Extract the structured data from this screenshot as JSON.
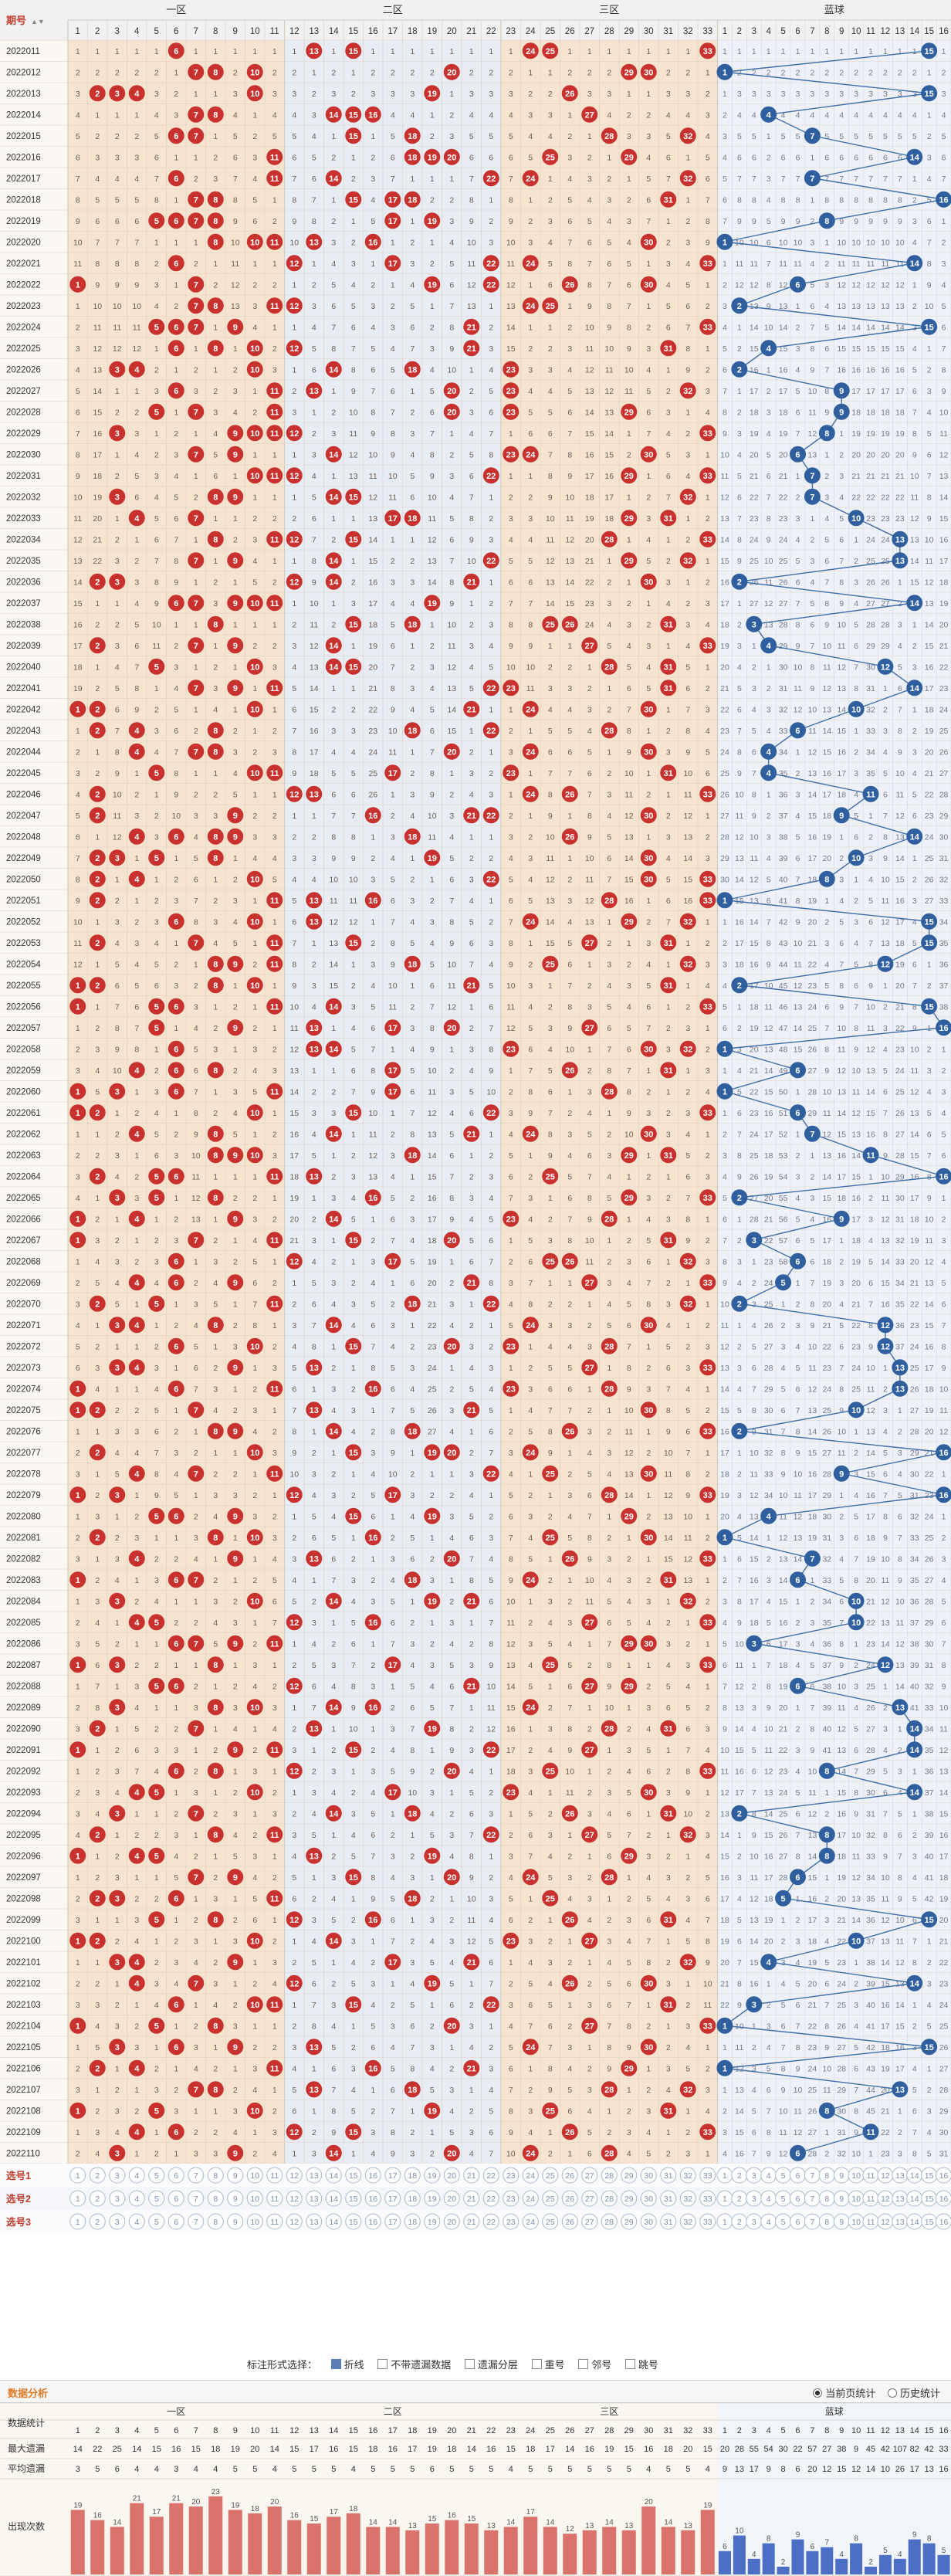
{
  "header": {
    "issue_label": "期号",
    "sort_glyph": "▲▼",
    "zones": [
      "一区",
      "二区",
      "三区"
    ],
    "blue_label": "蓝球",
    "red_numbers": [
      "1",
      "2",
      "3",
      "4",
      "5",
      "6",
      "7",
      "8",
      "9",
      "10",
      "11",
      "12",
      "13",
      "14",
      "15",
      "16",
      "17",
      "18",
      "19",
      "20",
      "21",
      "22",
      "23",
      "24",
      "25",
      "26",
      "27",
      "28",
      "29",
      "30",
      "31",
      "32",
      "33"
    ],
    "blue_numbers": [
      "1",
      "2",
      "3",
      "4",
      "5",
      "6",
      "7",
      "8",
      "9",
      "10",
      "11",
      "12",
      "13",
      "14",
      "15",
      "16"
    ]
  },
  "issues": [
    "2022011",
    "2022012",
    "2022013",
    "2022014",
    "2022015",
    "2022016",
    "2022017",
    "2022018",
    "2022019",
    "2022020",
    "2022021",
    "2022022",
    "2022023",
    "2022024",
    "2022025",
    "2022026",
    "2022027",
    "2022028",
    "2022029",
    "2022030",
    "2022031",
    "2022032",
    "2022033",
    "2022034",
    "2022035",
    "2022036",
    "2022037",
    "2022038",
    "2022039",
    "2022040",
    "2022041",
    "2022042",
    "2022043",
    "2022044",
    "2022045",
    "2022046",
    "2022047",
    "2022048",
    "2022049",
    "2022050",
    "2022051",
    "2022052",
    "2022053",
    "2022054",
    "2022055",
    "2022056",
    "2022057",
    "2022058",
    "2022059",
    "2022060",
    "2022061",
    "2022062",
    "2022063",
    "2022064",
    "2022065",
    "2022066",
    "2022067",
    "2022068",
    "2022069",
    "2022070",
    "2022071",
    "2022072",
    "2022073",
    "2022074",
    "2022075",
    "2022076",
    "2022077",
    "2022078",
    "2022079",
    "2022080",
    "2022081",
    "2022082",
    "2022083",
    "2022084",
    "2022085",
    "2022086",
    "2022087",
    "2022088",
    "2022089",
    "2022090",
    "2022091",
    "2022092",
    "2022093",
    "2022094",
    "2022095",
    "2022096",
    "2022097",
    "2022098",
    "2022099",
    "2022100",
    "2022101",
    "2022102",
    "2022103",
    "2022104",
    "2022105",
    "2022106",
    "2022107",
    "2022108",
    "2022109",
    "2022110"
  ],
  "chart_data": {
    "type": "table",
    "title": "",
    "red_draws": [
      [
        6,
        13,
        15,
        24,
        25,
        33
      ],
      [
        7,
        8,
        10,
        20,
        29,
        30
      ],
      [
        2,
        3,
        4,
        10,
        19,
        26
      ],
      [
        7,
        8,
        14,
        15,
        16,
        27
      ],
      [
        6,
        7,
        15,
        18,
        28,
        32
      ],
      [
        11,
        18,
        19,
        20,
        25,
        29
      ],
      [
        6,
        11,
        14,
        22,
        24,
        32
      ],
      [
        7,
        8,
        15,
        17,
        18,
        31
      ],
      [
        5,
        6,
        7,
        8,
        17,
        19
      ],
      [
        8,
        10,
        11,
        13,
        16,
        30
      ],
      [
        6,
        12,
        17,
        22,
        24,
        33
      ],
      [
        1,
        7,
        19,
        22,
        26,
        30
      ],
      [
        7,
        8,
        11,
        12,
        24,
        25
      ],
      [
        5,
        6,
        7,
        9,
        21,
        33
      ],
      [
        6,
        8,
        10,
        12,
        21,
        31
      ],
      [
        3,
        4,
        10,
        14,
        18,
        23
      ],
      [
        6,
        11,
        13,
        20,
        23,
        32
      ],
      [
        5,
        7,
        11,
        20,
        23,
        29
      ],
      [
        3,
        9,
        10,
        11,
        12,
        33
      ],
      [
        7,
        9,
        14,
        23,
        24,
        30
      ],
      [
        10,
        11,
        12,
        22,
        29,
        33
      ],
      [
        3,
        8,
        9,
        14,
        15,
        32
      ],
      [
        4,
        7,
        17,
        18,
        29,
        31
      ],
      [
        8,
        11,
        12,
        15,
        28,
        33
      ],
      [
        7,
        9,
        14,
        22,
        29,
        32
      ],
      [
        2,
        3,
        12,
        14,
        21,
        30
      ],
      [
        6,
        7,
        9,
        10,
        11,
        19
      ],
      [
        8,
        15,
        18,
        25,
        26,
        31
      ],
      [
        2,
        7,
        9,
        14,
        27,
        33
      ],
      [
        5,
        10,
        14,
        15,
        28,
        31
      ],
      [
        7,
        9,
        11,
        22,
        23,
        31
      ],
      [
        1,
        2,
        10,
        21,
        24,
        30
      ],
      [
        2,
        4,
        8,
        18,
        22,
        28
      ],
      [
        4,
        7,
        8,
        20,
        24,
        30
      ],
      [
        5,
        10,
        11,
        17,
        23,
        31
      ],
      [
        2,
        12,
        13,
        24,
        26,
        33
      ],
      [
        2,
        9,
        16,
        21,
        22,
        30
      ],
      [
        4,
        6,
        8,
        9,
        18,
        26
      ],
      [
        2,
        3,
        5,
        8,
        19,
        30
      ],
      [
        2,
        4,
        10,
        22,
        30,
        33
      ],
      [
        2,
        11,
        13,
        16,
        28,
        33
      ],
      [
        6,
        10,
        13,
        24,
        29,
        32
      ],
      [
        2,
        7,
        11,
        15,
        27,
        31
      ],
      [
        8,
        9,
        11,
        18,
        25,
        32
      ],
      [
        1,
        2,
        8,
        10,
        21,
        31
      ],
      [
        1,
        5,
        6,
        11,
        14,
        33
      ],
      [
        5,
        9,
        13,
        17,
        20,
        27
      ],
      [
        6,
        13,
        14,
        23,
        30,
        32
      ],
      [
        4,
        6,
        8,
        17,
        26,
        31
      ],
      [
        1,
        3,
        6,
        11,
        17,
        28
      ],
      [
        1,
        2,
        10,
        15,
        22,
        33
      ],
      [
        4,
        8,
        14,
        21,
        24,
        30
      ],
      [
        8,
        9,
        10,
        18,
        29,
        31
      ],
      [
        2,
        5,
        6,
        11,
        13,
        25
      ],
      [
        3,
        5,
        8,
        16,
        29,
        33
      ],
      [
        1,
        4,
        9,
        14,
        23,
        28
      ],
      [
        1,
        7,
        11,
        15,
        20,
        31
      ],
      [
        6,
        12,
        17,
        25,
        26,
        32
      ],
      [
        4,
        6,
        9,
        21,
        27,
        33
      ],
      [
        2,
        5,
        11,
        18,
        22,
        32
      ],
      [
        3,
        4,
        8,
        14,
        24,
        30
      ],
      [
        6,
        10,
        15,
        20,
        23,
        28
      ],
      [
        3,
        4,
        9,
        13,
        27,
        33
      ],
      [
        1,
        6,
        11,
        16,
        23,
        28
      ],
      [
        1,
        2,
        7,
        13,
        21,
        30
      ],
      [
        8,
        9,
        14,
        18,
        26,
        33
      ],
      [
        2,
        10,
        15,
        19,
        20,
        24
      ],
      [
        4,
        7,
        11,
        22,
        25,
        30
      ],
      [
        1,
        3,
        12,
        17,
        28,
        33
      ],
      [
        5,
        6,
        9,
        15,
        19,
        29
      ],
      [
        2,
        8,
        10,
        16,
        25,
        30
      ],
      [
        4,
        9,
        13,
        20,
        26,
        33
      ],
      [
        1,
        6,
        7,
        18,
        24,
        31
      ],
      [
        3,
        10,
        14,
        19,
        21,
        32
      ],
      [
        4,
        5,
        12,
        16,
        27,
        33
      ],
      [
        6,
        7,
        9,
        11,
        29,
        30
      ],
      [
        1,
        3,
        8,
        17,
        25,
        33
      ],
      [
        5,
        6,
        12,
        21,
        27,
        29
      ],
      [
        3,
        8,
        10,
        14,
        16,
        24
      ],
      [
        2,
        7,
        13,
        19,
        28,
        31
      ],
      [
        1,
        9,
        11,
        15,
        22,
        27
      ],
      [
        6,
        8,
        12,
        20,
        25,
        33
      ],
      [
        4,
        5,
        10,
        17,
        23,
        30
      ],
      [
        3,
        7,
        14,
        18,
        26,
        31
      ],
      [
        2,
        8,
        11,
        22,
        27,
        32
      ],
      [
        1,
        4,
        5,
        13,
        19,
        29
      ],
      [
        7,
        9,
        15,
        20,
        24,
        28
      ],
      [
        2,
        3,
        6,
        11,
        18,
        25
      ],
      [
        5,
        8,
        12,
        16,
        26,
        31
      ],
      [
        1,
        2,
        10,
        14,
        23,
        27
      ],
      [
        3,
        4,
        9,
        17,
        21,
        32
      ],
      [
        4,
        7,
        12,
        19,
        26,
        30
      ],
      [
        6,
        10,
        11,
        15,
        22,
        31
      ],
      [
        1,
        5,
        8,
        20,
        27,
        33
      ],
      [
        3,
        6,
        9,
        13,
        24,
        30
      ],
      [
        2,
        4,
        11,
        16,
        21,
        29
      ],
      [
        7,
        8,
        13,
        18,
        28,
        32
      ],
      [
        1,
        5,
        10,
        19,
        25,
        31
      ],
      [
        4,
        6,
        12,
        15,
        26,
        33
      ],
      [
        3,
        9,
        14,
        20,
        24,
        28
      ]
    ],
    "blue_draws": [
      15,
      1,
      15,
      4,
      7,
      14,
      7,
      16,
      8,
      1,
      14,
      6,
      2,
      15,
      4,
      2,
      9,
      9,
      8,
      6,
      7,
      7,
      10,
      13,
      13,
      2,
      14,
      3,
      4,
      12,
      14,
      10,
      6,
      4,
      4,
      11,
      9,
      14,
      10,
      8,
      1,
      15,
      15,
      12,
      2,
      15,
      16,
      1,
      6,
      1,
      6,
      7,
      11,
      16,
      2,
      9,
      3,
      6,
      5,
      2,
      12,
      12,
      13,
      13,
      10,
      2,
      16,
      9,
      16,
      4,
      1,
      7,
      6,
      10,
      10,
      3,
      12,
      6,
      13,
      14,
      14,
      8,
      14,
      2,
      8,
      8,
      6,
      5,
      15,
      10,
      4,
      14,
      3,
      1,
      15,
      1,
      13,
      8,
      11,
      6
    ],
    "stats": {
      "row_labels": [
        "数据统计",
        "最大遗漏",
        "平均遗漏",
        "出现次数"
      ],
      "max_miss_red": [
        14,
        22,
        25,
        14,
        15,
        16,
        15,
        18,
        19,
        20,
        14,
        15,
        17,
        16,
        15,
        18,
        16,
        17,
        19,
        18,
        14,
        16,
        15,
        18,
        17,
        14,
        16,
        19,
        15,
        16,
        18,
        20,
        15
      ],
      "avg_miss_red": [
        3,
        5,
        6,
        4,
        4,
        3,
        4,
        4,
        5,
        5,
        4,
        5,
        5,
        5,
        4,
        5,
        5,
        5,
        6,
        5,
        5,
        5,
        4,
        5,
        5,
        5,
        5,
        5,
        5,
        4,
        5,
        5,
        4
      ],
      "hits_red": [
        19,
        16,
        14,
        21,
        17,
        21,
        20,
        23,
        19,
        18,
        20,
        16,
        15,
        17,
        18,
        14,
        14,
        13,
        15,
        16,
        15,
        13,
        14,
        17,
        14,
        12,
        13,
        14,
        13,
        20,
        14,
        13,
        19
      ],
      "max_miss_blue": [
        20,
        28,
        55,
        54,
        30,
        22,
        57,
        27,
        38,
        9,
        45,
        42,
        107,
        82,
        42,
        33
      ],
      "avg_miss_blue": [
        9,
        13,
        17,
        9,
        8,
        6,
        20,
        12,
        15,
        12,
        14,
        10,
        26,
        17,
        13,
        16
      ],
      "hits_blue": [
        6,
        10,
        4,
        8,
        2,
        9,
        6,
        7,
        4,
        8,
        2,
        5,
        4,
        9,
        8,
        5
      ]
    }
  },
  "options": {
    "label": "标注形式选择：",
    "items": [
      {
        "label": "折线",
        "checked": true
      },
      {
        "label": "不带遗漏数据",
        "checked": false
      },
      {
        "label": "遗漏分层",
        "checked": false
      },
      {
        "label": "重号",
        "checked": false
      },
      {
        "label": "邻号",
        "checked": false
      },
      {
        "label": "跳号",
        "checked": false
      }
    ]
  },
  "analysis": {
    "title": "数据分析",
    "radio_current": "当前页统计",
    "radio_history": "历史统计"
  },
  "pick_rows": [
    "选号1",
    "选号2",
    "选号3"
  ]
}
